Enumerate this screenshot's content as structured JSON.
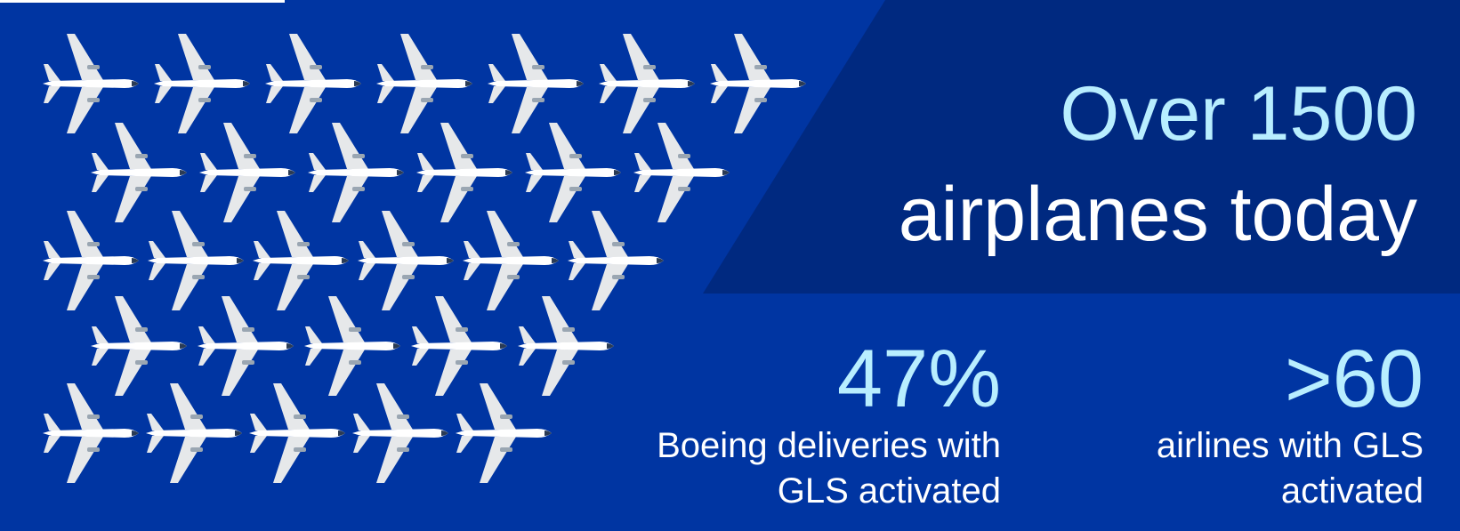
{
  "headline": [
    "Over 1500",
    "airplanes today"
  ],
  "stats": [
    {
      "value": "47%",
      "lines": [
        "Boeing deliveries with",
        "GLS activated"
      ]
    },
    {
      "value": ">60",
      "lines": [
        "airlines with GLS",
        "activated"
      ]
    }
  ]
}
